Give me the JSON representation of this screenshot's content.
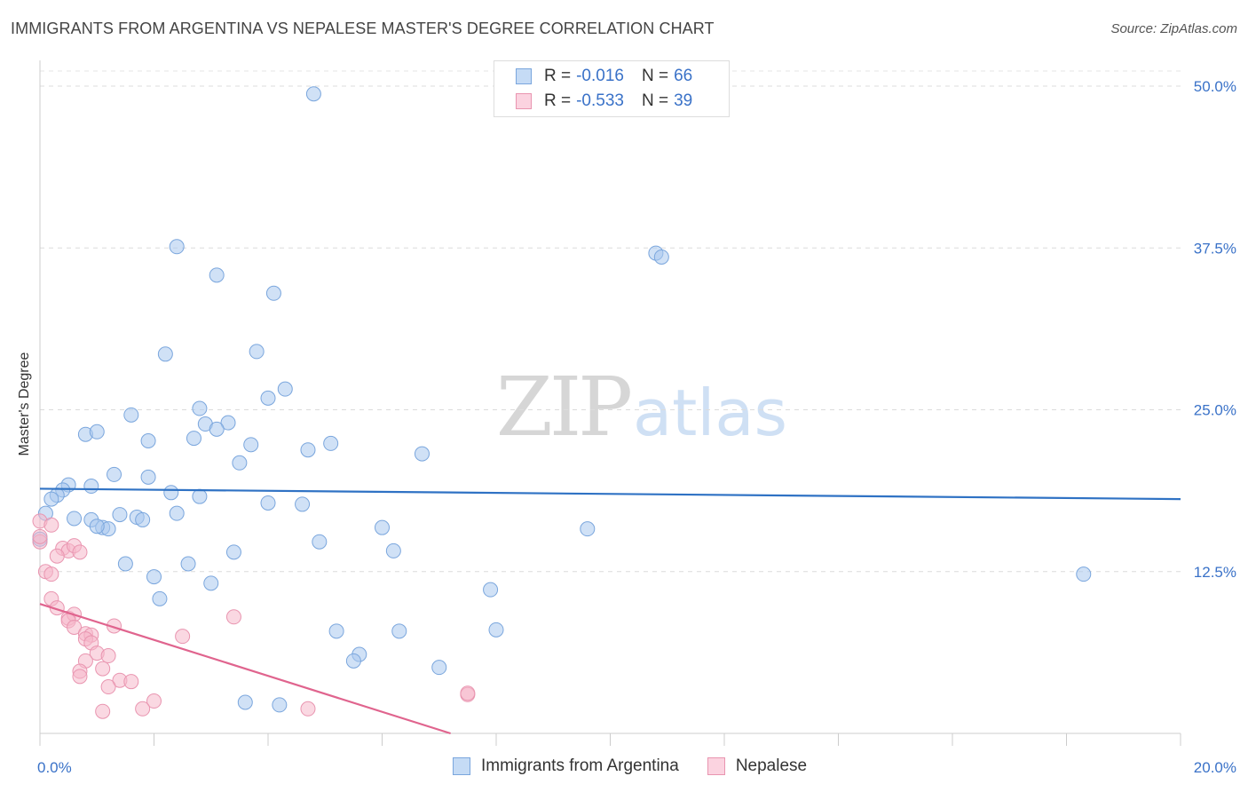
{
  "header": {
    "title": "IMMIGRANTS FROM ARGENTINA VS NEPALESE MASTER'S DEGREE CORRELATION CHART",
    "source": "Source: ZipAtlas.com"
  },
  "watermark": {
    "zip": "ZIP",
    "atlas": "atlas"
  },
  "legend_top": {
    "rows": [
      {
        "r_label": "R =",
        "r_value": "-0.016",
        "n_label": "N =",
        "n_value": "66",
        "color": "#a9c8ef"
      },
      {
        "r_label": "R =",
        "r_value": "-0.533",
        "n_label": "N =",
        "n_value": "39",
        "color": "#f6b8cb"
      }
    ]
  },
  "legend_bottom": {
    "items": [
      {
        "label": "Immigrants from Argentina",
        "color": "#a9c8ef"
      },
      {
        "label": "Nepalese",
        "color": "#f6b8cb"
      }
    ]
  },
  "chart_data": {
    "type": "scatter",
    "ylabel": "Master's Degree",
    "xlim": [
      0,
      20
    ],
    "ylim": [
      0,
      50
    ],
    "x_tick_labels": [
      {
        "value": 0,
        "label": "0.0%"
      },
      {
        "value": 20,
        "label": "20.0%"
      }
    ],
    "y_tick_labels": [
      {
        "value": 12.5,
        "label": "12.5%"
      },
      {
        "value": 25,
        "label": "25.0%"
      },
      {
        "value": 37.5,
        "label": "37.5%"
      },
      {
        "value": 50,
        "label": "50.0%"
      }
    ],
    "grid": "dashed horizontal",
    "series": [
      {
        "name": "Immigrants from Argentina",
        "color": "#a9c8ef",
        "stroke": "#7aa6dd",
        "trend": {
          "x": [
            0,
            20
          ],
          "y": [
            18.9,
            18.1
          ],
          "color": "#2f72c4"
        },
        "points": [
          [
            4.8,
            49.4
          ],
          [
            2.4,
            37.6
          ],
          [
            3.1,
            35.4
          ],
          [
            4.1,
            34.0
          ],
          [
            10.8,
            37.1
          ],
          [
            10.9,
            36.8
          ],
          [
            2.2,
            29.3
          ],
          [
            3.8,
            29.5
          ],
          [
            4.3,
            26.6
          ],
          [
            4.0,
            25.9
          ],
          [
            1.6,
            24.6
          ],
          [
            2.8,
            25.1
          ],
          [
            2.9,
            23.9
          ],
          [
            3.3,
            24.0
          ],
          [
            3.1,
            23.5
          ],
          [
            0.8,
            23.1
          ],
          [
            1.0,
            23.3
          ],
          [
            1.9,
            22.6
          ],
          [
            2.7,
            22.8
          ],
          [
            3.7,
            22.3
          ],
          [
            5.1,
            22.4
          ],
          [
            4.7,
            21.9
          ],
          [
            6.7,
            21.6
          ],
          [
            3.5,
            20.9
          ],
          [
            1.3,
            20.0
          ],
          [
            1.9,
            19.8
          ],
          [
            0.5,
            19.2
          ],
          [
            0.9,
            19.1
          ],
          [
            0.4,
            18.8
          ],
          [
            0.3,
            18.4
          ],
          [
            2.3,
            18.6
          ],
          [
            2.8,
            18.3
          ],
          [
            0.2,
            18.1
          ],
          [
            4.0,
            17.8
          ],
          [
            4.6,
            17.7
          ],
          [
            0.1,
            17.0
          ],
          [
            0.6,
            16.6
          ],
          [
            0.9,
            16.5
          ],
          [
            1.4,
            16.9
          ],
          [
            1.7,
            16.7
          ],
          [
            1.8,
            16.5
          ],
          [
            2.4,
            17.0
          ],
          [
            1.1,
            15.9
          ],
          [
            1.2,
            15.8
          ],
          [
            1.0,
            16.0
          ],
          [
            6.0,
            15.9
          ],
          [
            9.6,
            15.8
          ],
          [
            0.0,
            15.0
          ],
          [
            4.9,
            14.8
          ],
          [
            3.4,
            14.0
          ],
          [
            6.2,
            14.1
          ],
          [
            1.5,
            13.1
          ],
          [
            2.6,
            13.1
          ],
          [
            2.0,
            12.1
          ],
          [
            3.0,
            11.6
          ],
          [
            18.3,
            12.3
          ],
          [
            2.1,
            10.4
          ],
          [
            7.9,
            11.1
          ],
          [
            5.2,
            7.9
          ],
          [
            6.3,
            7.9
          ],
          [
            8.0,
            8.0
          ],
          [
            5.6,
            6.1
          ],
          [
            5.5,
            5.6
          ],
          [
            7.0,
            5.1
          ],
          [
            3.6,
            2.4
          ],
          [
            4.2,
            2.2
          ]
        ]
      },
      {
        "name": "Nepalese",
        "color": "#f6b8cb",
        "stroke": "#e995b0",
        "trend": {
          "x": [
            0,
            7.2
          ],
          "y": [
            10.0,
            0.0
          ],
          "color": "#e0648e"
        },
        "points": [
          [
            0.0,
            16.4
          ],
          [
            0.2,
            16.1
          ],
          [
            0.0,
            14.8
          ],
          [
            0.4,
            14.3
          ],
          [
            0.5,
            14.1
          ],
          [
            0.6,
            14.5
          ],
          [
            0.7,
            14.0
          ],
          [
            0.3,
            13.7
          ],
          [
            0.1,
            12.5
          ],
          [
            0.2,
            12.3
          ],
          [
            0.2,
            10.4
          ],
          [
            0.3,
            9.7
          ],
          [
            0.5,
            8.9
          ],
          [
            0.6,
            9.2
          ],
          [
            0.5,
            8.7
          ],
          [
            0.6,
            8.2
          ],
          [
            0.8,
            7.7
          ],
          [
            0.9,
            7.6
          ],
          [
            0.8,
            7.3
          ],
          [
            0.9,
            7.0
          ],
          [
            1.3,
            8.3
          ],
          [
            2.5,
            7.5
          ],
          [
            3.4,
            9.0
          ],
          [
            1.0,
            6.2
          ],
          [
            1.2,
            6.0
          ],
          [
            0.8,
            5.6
          ],
          [
            0.7,
            4.8
          ],
          [
            0.7,
            4.4
          ],
          [
            1.1,
            5.0
          ],
          [
            1.4,
            4.1
          ],
          [
            1.6,
            4.0
          ],
          [
            1.2,
            3.6
          ],
          [
            2.0,
            2.5
          ],
          [
            1.8,
            1.9
          ],
          [
            1.1,
            1.7
          ],
          [
            4.7,
            1.9
          ],
          [
            7.5,
            3.0
          ],
          [
            7.5,
            3.1
          ],
          [
            0.0,
            15.2
          ]
        ]
      }
    ]
  }
}
